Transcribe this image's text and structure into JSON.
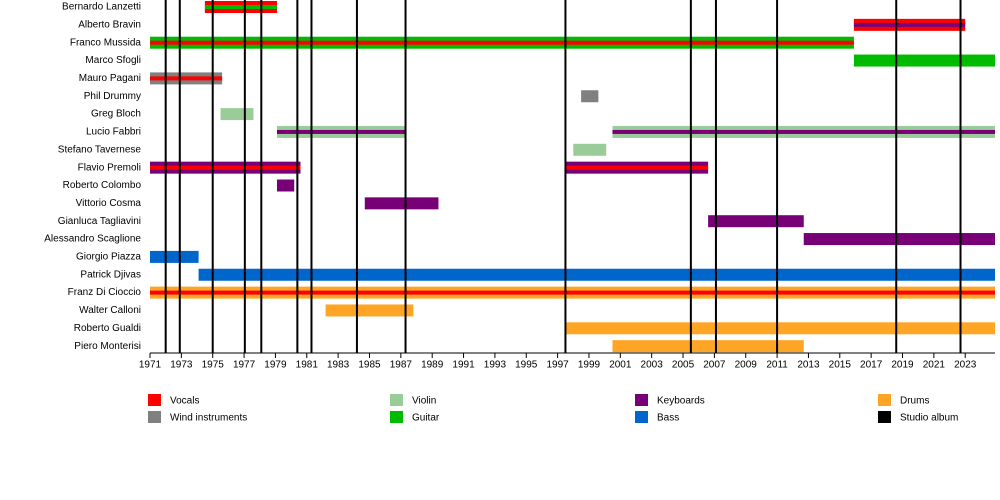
{
  "chart_data": {
    "type": "timeline",
    "xlim": [
      1971,
      2024.9
    ],
    "xticks": [
      1971,
      1973,
      1975,
      1977,
      1979,
      1981,
      1983,
      1985,
      1987,
      1989,
      1991,
      1993,
      1995,
      1997,
      1999,
      2001,
      2003,
      2005,
      2007,
      2009,
      2011,
      2013,
      2015,
      2017,
      2019,
      2021,
      2023
    ],
    "legend": [
      {
        "name": "Vocals",
        "color": "#ff0000"
      },
      {
        "name": "Wind instruments",
        "color": "#808080"
      },
      {
        "name": "Violin",
        "color": "#99cc99"
      },
      {
        "name": "Guitar",
        "color": "#00bb00"
      },
      {
        "name": "Keyboards",
        "color": "#770077"
      },
      {
        "name": "Bass",
        "color": "#0066cc"
      },
      {
        "name": "Drums",
        "color": "#ffa526"
      },
      {
        "name": "Studio album",
        "color": "#000000"
      }
    ],
    "albums": [
      1972.0,
      1972.9,
      1975.0,
      1977.05,
      1978.1,
      1980.4,
      1981.3,
      1984.2,
      1987.3,
      1997.5,
      2005.5,
      2007.1,
      2011.0,
      2018.6,
      2022.7
    ],
    "members": [
      {
        "name": "Bernardo Lanzetti",
        "spans": [
          {
            "start": 1974.5,
            "end": 1979.1,
            "role": "Vocals",
            "second": "Guitar"
          }
        ]
      },
      {
        "name": "Alberto Bravin",
        "spans": [
          {
            "start": 2015.9,
            "end": 2023.0,
            "role": "Vocals",
            "second": "Keyboards"
          }
        ]
      },
      {
        "name": "Franco Mussida",
        "spans": [
          {
            "start": 1971,
            "end": 2015.9,
            "role": "Guitar",
            "second": "Vocals"
          }
        ]
      },
      {
        "name": "Marco Sfogli",
        "spans": [
          {
            "start": 2015.9,
            "end": 2024.9,
            "role": "Guitar"
          }
        ]
      },
      {
        "name": "Mauro Pagani",
        "spans": [
          {
            "start": 1971,
            "end": 1975.6,
            "role": "Wind instruments",
            "second": "Vocals"
          }
        ]
      },
      {
        "name": "Phil Drummy",
        "spans": [
          {
            "start": 1998.5,
            "end": 1999.6,
            "role": "Wind instruments"
          }
        ]
      },
      {
        "name": "Greg Bloch",
        "spans": [
          {
            "start": 1975.5,
            "end": 1977.6,
            "role": "Violin"
          }
        ]
      },
      {
        "name": "Lucio Fabbri",
        "spans": [
          {
            "start": 1979.1,
            "end": 1987.3,
            "role": "Violin",
            "second": "Keyboards"
          },
          {
            "start": 2000.5,
            "end": 2024.9,
            "role": "Violin",
            "second": "Keyboards"
          }
        ]
      },
      {
        "name": "Stefano Tavernese",
        "spans": [
          {
            "start": 1998.0,
            "end": 2000.1,
            "role": "Violin"
          }
        ]
      },
      {
        "name": "Flavio Premoli",
        "spans": [
          {
            "start": 1971,
            "end": 1980.6,
            "role": "Keyboards",
            "second": "Vocals"
          },
          {
            "start": 1997.5,
            "end": 2006.6,
            "role": "Keyboards",
            "second": "Vocals"
          }
        ]
      },
      {
        "name": "Roberto Colombo",
        "spans": [
          {
            "start": 1979.1,
            "end": 1980.2,
            "role": "Keyboards"
          }
        ]
      },
      {
        "name": "Vittorio Cosma",
        "spans": [
          {
            "start": 1984.7,
            "end": 1989.4,
            "role": "Keyboards"
          }
        ]
      },
      {
        "name": "Gianluca Tagliavini",
        "spans": [
          {
            "start": 2006.6,
            "end": 2012.7,
            "role": "Keyboards"
          }
        ]
      },
      {
        "name": "Alessandro Scaglione",
        "spans": [
          {
            "start": 2012.7,
            "end": 2024.9,
            "role": "Keyboards"
          }
        ]
      },
      {
        "name": "Giorgio Piazza",
        "spans": [
          {
            "start": 1971,
            "end": 1974.1,
            "role": "Bass"
          }
        ]
      },
      {
        "name": "Patrick Djivas",
        "spans": [
          {
            "start": 1974.1,
            "end": 2024.9,
            "role": "Bass"
          }
        ]
      },
      {
        "name": "Franz Di Cioccio",
        "spans": [
          {
            "start": 1971,
            "end": 2024.9,
            "role": "Drums",
            "second": "Vocals"
          }
        ]
      },
      {
        "name": "Walter Calloni",
        "spans": [
          {
            "start": 1982.2,
            "end": 1987.8,
            "role": "Drums"
          }
        ]
      },
      {
        "name": "Roberto Gualdi",
        "spans": [
          {
            "start": 1997.5,
            "end": 2024.9,
            "role": "Drums"
          }
        ]
      },
      {
        "name": "Piero Monterisi",
        "spans": [
          {
            "start": 2000.5,
            "end": 2012.7,
            "role": "Drums"
          }
        ]
      }
    ]
  }
}
